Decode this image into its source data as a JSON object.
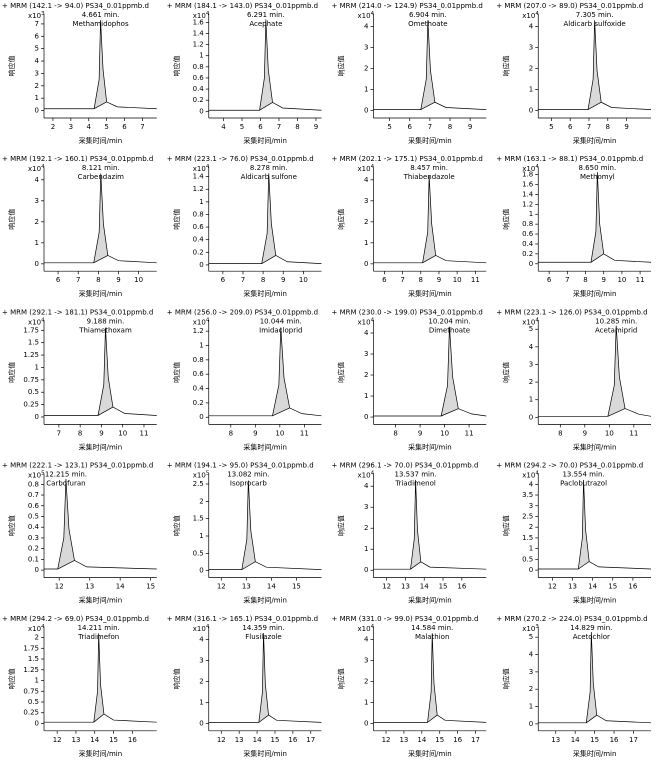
{
  "chart_data": [
    {
      "type": "line",
      "title": "+ MRM (142.1 -> 94.0) PS34_0.01ppmb.d",
      "y_scale_base": "x10",
      "y_scale_exp": "3",
      "peak_label": "4.661 min.",
      "compound": "Methamidophos",
      "ylabel": "响应值",
      "xlabel": "采集时间/min",
      "color": "#000000",
      "area_color": "#d9d9d9",
      "x": [
        1.5,
        4.3,
        4.58,
        4.66,
        4.8,
        5.0,
        5.6,
        7.8
      ],
      "values": [
        0.15,
        0.15,
        2.5,
        7.3,
        3.3,
        0.7,
        0.3,
        0.15
      ],
      "xlim": [
        1.5,
        7.8
      ],
      "ylim": [
        -0.6,
        7.8
      ],
      "xticks": [
        2,
        3,
        4,
        5,
        6,
        7
      ],
      "yticks": [
        0,
        1,
        2,
        3,
        4,
        5,
        6,
        7
      ]
    },
    {
      "type": "line",
      "title": "+ MRM (184.1 -> 143.0) PS34_0.01ppmb.d",
      "y_scale_base": "x10",
      "y_scale_exp": "4",
      "peak_label": "6.291 min.",
      "compound": "Acephate",
      "ylabel": "响应值",
      "xlabel": "采集时间/min",
      "color": "#000000",
      "area_color": "#d9d9d9",
      "x": [
        3.2,
        5.95,
        6.21,
        6.29,
        6.42,
        6.65,
        7.2,
        9.3
      ],
      "values": [
        0.02,
        0.02,
        0.6,
        1.65,
        0.75,
        0.16,
        0.06,
        0.02
      ],
      "xlim": [
        3.2,
        9.3
      ],
      "ylim": [
        -0.12,
        1.75
      ],
      "xticks": [
        4,
        5,
        6,
        7,
        8,
        9
      ],
      "yticks": [
        0,
        0.2,
        0.4,
        0.6,
        0.8,
        1,
        1.2,
        1.4,
        1.6
      ]
    },
    {
      "type": "line",
      "title": "+ MRM (214.0 -> 124.9) PS34_0.01ppmb.d",
      "y_scale_base": "x10",
      "y_scale_exp": "4",
      "peak_label": "6.904 min.",
      "compound": "Omethoate",
      "ylabel": "响应值",
      "xlabel": "采集时间/min",
      "color": "#000000",
      "area_color": "#d9d9d9",
      "x": [
        4.2,
        6.55,
        6.82,
        6.9,
        7.03,
        7.25,
        7.8,
        9.8
      ],
      "values": [
        0.05,
        0.05,
        1.5,
        4.3,
        1.9,
        0.4,
        0.15,
        0.05
      ],
      "xlim": [
        4.2,
        9.8
      ],
      "ylim": [
        -0.35,
        4.6
      ],
      "xticks": [
        5,
        6,
        7,
        8,
        9
      ],
      "yticks": [
        0,
        1,
        2,
        3,
        4
      ]
    },
    {
      "type": "line",
      "title": "+ MRM (207.0 -> 89.0) PS34_0.01ppmb.d",
      "y_scale_base": "x10",
      "y_scale_exp": "4",
      "peak_label": "7.305 min.",
      "compound": "Aldicarb sulfoxide",
      "ylabel": "响应值",
      "xlabel": "采集时间/min",
      "color": "#000000",
      "area_color": "#d9d9d9",
      "x": [
        4.3,
        6.95,
        7.22,
        7.3,
        7.43,
        7.65,
        8.2,
        10.3
      ],
      "values": [
        0.05,
        0.05,
        1.5,
        4.3,
        1.9,
        0.4,
        0.15,
        0.05
      ],
      "xlim": [
        4.3,
        10.3
      ],
      "ylim": [
        -0.35,
        4.6
      ],
      "xticks": [
        5,
        6,
        7,
        8,
        9
      ],
      "yticks": [
        0,
        1,
        2,
        3,
        4
      ]
    },
    {
      "type": "line",
      "title": "+ MRM (192.1 -> 160.1) PS34_0.01ppmb.d",
      "y_scale_base": "x10",
      "y_scale_exp": "4",
      "peak_label": "8.121 min.",
      "compound": "Carbendazim",
      "ylabel": "响应值",
      "xlabel": "采集时间/min",
      "color": "#000000",
      "area_color": "#d9d9d9",
      "x": [
        5.3,
        7.77,
        8.04,
        8.12,
        8.25,
        8.47,
        9.0,
        10.9
      ],
      "values": [
        0.05,
        0.05,
        1.5,
        4.3,
        1.9,
        0.4,
        0.15,
        0.05
      ],
      "xlim": [
        5.3,
        10.9
      ],
      "ylim": [
        -0.35,
        4.6
      ],
      "xticks": [
        6,
        7,
        8,
        9,
        10
      ],
      "yticks": [
        0,
        1,
        2,
        3,
        4
      ]
    },
    {
      "type": "line",
      "title": "+ MRM (223.1 -> 76.0) PS34_0.01ppmb.d",
      "y_scale_base": "x10",
      "y_scale_exp": "4",
      "peak_label": "8.278 min.",
      "compound": "Aldicarb sulfone",
      "ylabel": "响应值",
      "xlabel": "采集时间/min",
      "color": "#000000",
      "area_color": "#d9d9d9",
      "x": [
        5.3,
        7.93,
        8.2,
        8.28,
        8.41,
        8.63,
        9.2,
        10.9
      ],
      "values": [
        0.02,
        0.02,
        0.5,
        1.45,
        0.65,
        0.15,
        0.05,
        0.02
      ],
      "xlim": [
        5.3,
        10.9
      ],
      "ylim": [
        -0.1,
        1.55
      ],
      "xticks": [
        6,
        7,
        8,
        9,
        10
      ],
      "yticks": [
        0,
        0.2,
        0.4,
        0.6,
        0.8,
        1,
        1.2,
        1.4
      ]
    },
    {
      "type": "line",
      "title": "+ MRM (202.1 -> 175.1) PS34_0.01ppmb.d",
      "y_scale_base": "x10",
      "y_scale_exp": "4",
      "peak_label": "8.457 min.",
      "compound": "Thiabendazole",
      "ylabel": "响应值",
      "xlabel": "采集时间/min",
      "color": "#000000",
      "area_color": "#d9d9d9",
      "x": [
        5.4,
        8.1,
        8.38,
        8.46,
        8.6,
        8.82,
        9.4,
        11.6
      ],
      "values": [
        0.05,
        0.05,
        1.5,
        4.2,
        1.9,
        0.4,
        0.15,
        0.05
      ],
      "xlim": [
        5.4,
        11.6
      ],
      "ylim": [
        -0.35,
        4.6
      ],
      "xticks": [
        6,
        7,
        8,
        9,
        10,
        11
      ],
      "yticks": [
        0,
        1,
        2,
        3,
        4
      ]
    },
    {
      "type": "line",
      "title": "+ MRM (163.1 -> 88.1) PS34_0.01ppmb.d",
      "y_scale_base": "x10",
      "y_scale_exp": "4",
      "peak_label": "8.650 min.",
      "compound": "Methomyl",
      "ylabel": "响应值",
      "xlabel": "采集时间/min",
      "color": "#000000",
      "area_color": "#d9d9d9",
      "x": [
        5.4,
        8.3,
        8.57,
        8.65,
        8.78,
        9.0,
        9.6,
        11.6
      ],
      "values": [
        0.03,
        0.03,
        0.65,
        1.85,
        0.8,
        0.2,
        0.07,
        0.03
      ],
      "xlim": [
        5.4,
        11.6
      ],
      "ylim": [
        -0.15,
        1.95
      ],
      "xticks": [
        6,
        7,
        8,
        9,
        10,
        11
      ],
      "yticks": [
        0,
        0.2,
        0.4,
        0.6,
        0.8,
        1,
        1.2,
        1.4,
        1.6,
        1.8
      ]
    },
    {
      "type": "line",
      "title": "+ MRM (292.1 -> 181.1) PS34_0.01ppmb.d",
      "y_scale_base": "x10",
      "y_scale_exp": "4",
      "peak_label": "9.188 min.",
      "compound": "Thiamethoxam",
      "ylabel": "响应值",
      "xlabel": "采集时间/min",
      "color": "#000000",
      "area_color": "#d9d9d9",
      "x": [
        6.3,
        8.84,
        9.11,
        9.19,
        9.32,
        9.54,
        10.1,
        11.6
      ],
      "values": [
        0.03,
        0.03,
        0.65,
        1.8,
        0.8,
        0.2,
        0.07,
        0.03
      ],
      "xlim": [
        6.3,
        11.6
      ],
      "ylim": [
        -0.15,
        1.95
      ],
      "xticks": [
        7,
        8,
        9,
        10,
        11
      ],
      "yticks": [
        0,
        0.25,
        0.5,
        0.75,
        1,
        1.25,
        1.5,
        1.75
      ]
    },
    {
      "type": "line",
      "title": "+ MRM (256.0 -> 209.0) PS34_0.01ppmb.d",
      "y_scale_base": "x10",
      "y_scale_exp": "4",
      "peak_label": "10.044 min.",
      "compound": "Imidacloprid",
      "ylabel": "响应值",
      "xlabel": "采集时间/min",
      "color": "#000000",
      "area_color": "#d9d9d9",
      "x": [
        7.1,
        9.7,
        9.96,
        10.04,
        10.17,
        10.4,
        10.9,
        11.7
      ],
      "values": [
        0.02,
        0.02,
        0.45,
        1.25,
        0.55,
        0.13,
        0.05,
        0.02
      ],
      "xlim": [
        7.1,
        11.7
      ],
      "ylim": [
        -0.1,
        1.35
      ],
      "xticks": [
        8,
        9,
        10,
        11
      ],
      "yticks": [
        0,
        0.2,
        0.4,
        0.6,
        0.8,
        1,
        1.2
      ]
    },
    {
      "type": "line",
      "title": "+ MRM (230.0 -> 199.0) PS34_0.01ppmb.d",
      "y_scale_base": "x10",
      "y_scale_exp": "4",
      "peak_label": "10.204 min.",
      "compound": "Dimethoate",
      "ylabel": "响应值",
      "xlabel": "采集时间/min",
      "color": "#000000",
      "area_color": "#d9d9d9",
      "x": [
        7.1,
        9.86,
        10.12,
        10.2,
        10.33,
        10.56,
        11.1,
        11.7
      ],
      "values": [
        0.05,
        0.05,
        1.5,
        4.3,
        1.9,
        0.4,
        0.15,
        0.05
      ],
      "xlim": [
        7.1,
        11.7
      ],
      "ylim": [
        -0.35,
        4.6
      ],
      "xticks": [
        8,
        9,
        10,
        11
      ],
      "yticks": [
        0,
        1,
        2,
        3,
        4
      ]
    },
    {
      "type": "line",
      "title": "+ MRM (223.1 -> 126.0) PS34_0.01ppmb.d",
      "y_scale_base": "x10",
      "y_scale_exp": "4",
      "peak_label": "10.285 min.",
      "compound": "Acetamiprid",
      "ylabel": "响应值",
      "xlabel": "采集时间/min",
      "color": "#000000",
      "area_color": "#d9d9d9",
      "x": [
        7.1,
        9.94,
        10.2,
        10.28,
        10.41,
        10.64,
        11.2,
        11.7
      ],
      "values": [
        0.06,
        0.06,
        1.8,
        5.2,
        2.3,
        0.5,
        0.18,
        0.06
      ],
      "xlim": [
        7.1,
        11.7
      ],
      "ylim": [
        -0.4,
        5.5
      ],
      "xticks": [
        8,
        9,
        10,
        11
      ],
      "yticks": [
        0,
        1,
        2,
        3,
        4,
        5
      ]
    },
    {
      "type": "line",
      "title": "+ MRM (222.1 -> 123.1) PS34_0.01ppmb.d",
      "y_scale_base": "x10",
      "y_scale_exp": "5",
      "peak_label": "12.215 min.",
      "compound": "Carbofuran",
      "ylabel": "响应值",
      "xlabel": "采集时间/min",
      "color": "#000000",
      "area_color": "#d9d9d9",
      "x": [
        11.5,
        11.95,
        12.15,
        12.22,
        12.32,
        12.5,
        12.9,
        15.2
      ],
      "values": [
        0.01,
        0.01,
        0.3,
        0.85,
        0.38,
        0.09,
        0.03,
        0.01
      ],
      "xlim": [
        11.5,
        15.2
      ],
      "ylim": [
        -0.07,
        0.9
      ],
      "xticks": [
        12,
        13,
        14,
        15
      ],
      "yticks": [
        0,
        0.1,
        0.2,
        0.3,
        0.4,
        0.5,
        0.6,
        0.7,
        0.8
      ]
    },
    {
      "type": "line",
      "title": "+ MRM (194.1 -> 95.0) PS34_0.01ppmb.d",
      "y_scale_base": "x10",
      "y_scale_exp": "5",
      "peak_label": "13.082 min.",
      "compound": "Isoprocarb",
      "ylabel": "响应值",
      "xlabel": "采集时间/min",
      "color": "#000000",
      "area_color": "#d9d9d9",
      "x": [
        11.5,
        12.82,
        13.02,
        13.08,
        13.18,
        13.36,
        13.8,
        16
      ],
      "values": [
        0.03,
        0.03,
        0.9,
        2.6,
        1.15,
        0.26,
        0.1,
        0.03
      ],
      "xlim": [
        11.5,
        16
      ],
      "ylim": [
        -0.2,
        2.8
      ],
      "xticks": [
        12,
        13,
        14,
        15
      ],
      "yticks": [
        0,
        0.5,
        1,
        1.5,
        2,
        2.5
      ]
    },
    {
      "type": "line",
      "title": "+ MRM (296.1 -> 70.0) PS34_0.01ppmb.d",
      "y_scale_base": "x10",
      "y_scale_exp": "4",
      "peak_label": "13.537 min.",
      "compound": "Triadimenol",
      "ylabel": "响应值",
      "xlabel": "采集时间/min",
      "color": "#000000",
      "area_color": "#d9d9d9",
      "x": [
        11.3,
        13.27,
        13.47,
        13.54,
        13.64,
        13.82,
        14.3,
        17.3
      ],
      "values": [
        0.05,
        0.05,
        1.5,
        4.3,
        1.9,
        0.4,
        0.15,
        0.05
      ],
      "xlim": [
        11.3,
        17.3
      ],
      "ylim": [
        -0.35,
        4.6
      ],
      "xticks": [
        12,
        13,
        14,
        15,
        16
      ],
      "yticks": [
        0,
        1,
        2,
        3,
        4
      ]
    },
    {
      "type": "line",
      "title": "+ MRM (294.2 -> 70.0) PS34_0.01ppmb.d",
      "y_scale_base": "x10",
      "y_scale_exp": "4",
      "peak_label": "13.554 min.",
      "compound": "Paclobutrazol",
      "ylabel": "响应值",
      "xlabel": "采集时间/min",
      "color": "#000000",
      "area_color": "#d9d9d9",
      "x": [
        11.3,
        13.29,
        13.49,
        13.55,
        13.65,
        13.83,
        14.3,
        16.9
      ],
      "values": [
        0.05,
        0.05,
        1.5,
        4.2,
        1.9,
        0.4,
        0.15,
        0.05
      ],
      "xlim": [
        11.3,
        16.9
      ],
      "ylim": [
        -0.35,
        4.5
      ],
      "xticks": [
        12,
        13,
        14,
        15,
        16
      ],
      "yticks": [
        0,
        0.5,
        1,
        1.5,
        2,
        2.5,
        3,
        3.5,
        4
      ]
    },
    {
      "type": "line",
      "title": "+ MRM (294.2 -> 69.0) PS34_0.01ppmb.d",
      "y_scale_base": "x10",
      "y_scale_exp": "4",
      "peak_label": "14.211 min.",
      "compound": "Triadimefon",
      "ylabel": "响应值",
      "xlabel": "采集时间/min",
      "color": "#000000",
      "area_color": "#d9d9d9",
      "x": [
        11.3,
        13.95,
        14.15,
        14.21,
        14.31,
        14.49,
        15.0,
        17.3
      ],
      "values": [
        0.03,
        0.03,
        0.75,
        2.1,
        0.9,
        0.22,
        0.08,
        0.03
      ],
      "xlim": [
        11.3,
        17.3
      ],
      "ylim": [
        -0.17,
        2.25
      ],
      "xticks": [
        12,
        13,
        14,
        15,
        16
      ],
      "yticks": [
        0,
        0.25,
        0.5,
        0.75,
        1,
        1.25,
        1.5,
        1.75,
        2
      ]
    },
    {
      "type": "line",
      "title": "+ MRM (316.1 -> 165.1) PS34_0.01ppmb.d",
      "y_scale_base": "x10",
      "y_scale_exp": "4",
      "peak_label": "14.359 min.",
      "compound": "Flusilazole",
      "ylabel": "响应值",
      "xlabel": "采集时间/min",
      "color": "#000000",
      "area_color": "#d9d9d9",
      "x": [
        11.3,
        14.1,
        14.3,
        14.36,
        14.46,
        14.64,
        15.1,
        17.6
      ],
      "values": [
        0.05,
        0.05,
        1.5,
        4.3,
        1.9,
        0.4,
        0.15,
        0.05
      ],
      "xlim": [
        11.3,
        17.6
      ],
      "ylim": [
        -0.35,
        4.6
      ],
      "xticks": [
        12,
        13,
        14,
        15,
        16,
        17
      ],
      "yticks": [
        0,
        1,
        2,
        3,
        4
      ]
    },
    {
      "type": "line",
      "title": "+ MRM (331.0 -> 99.0) PS34_0.01ppmb.d",
      "y_scale_base": "x10",
      "y_scale_exp": "4",
      "peak_label": "14.584 min.",
      "compound": "Malathion",
      "ylabel": "响应值",
      "xlabel": "采集时间/min",
      "color": "#000000",
      "area_color": "#d9d9d9",
      "x": [
        11.3,
        14.32,
        14.52,
        14.58,
        14.68,
        14.86,
        15.3,
        17.6
      ],
      "values": [
        0.05,
        0.05,
        1.5,
        4.3,
        1.9,
        0.4,
        0.15,
        0.05
      ],
      "xlim": [
        11.3,
        17.6
      ],
      "ylim": [
        -0.35,
        4.6
      ],
      "xticks": [
        12,
        13,
        14,
        15,
        16,
        17
      ],
      "yticks": [
        0,
        1,
        2,
        3,
        4
      ]
    },
    {
      "type": "line",
      "title": "+ MRM (270.2 -> 224.0) PS34_0.01ppmb.d",
      "y_scale_base": "x10",
      "y_scale_exp": "3",
      "peak_label": "14.829 min.",
      "compound": "Acetochlor",
      "ylabel": "响应值",
      "xlabel": "采集时间/min",
      "color": "#000000",
      "area_color": "#d9d9d9",
      "x": [
        12.1,
        14.57,
        14.77,
        14.83,
        14.93,
        15.11,
        15.6,
        17.9
      ],
      "values": [
        0.06,
        0.06,
        1.85,
        5.3,
        2.35,
        0.5,
        0.18,
        0.06
      ],
      "xlim": [
        12.1,
        17.9
      ],
      "ylim": [
        -0.4,
        5.6
      ],
      "xticks": [
        13,
        14,
        15,
        16,
        17
      ],
      "yticks": [
        0,
        1,
        2,
        3,
        4,
        5
      ]
    }
  ]
}
